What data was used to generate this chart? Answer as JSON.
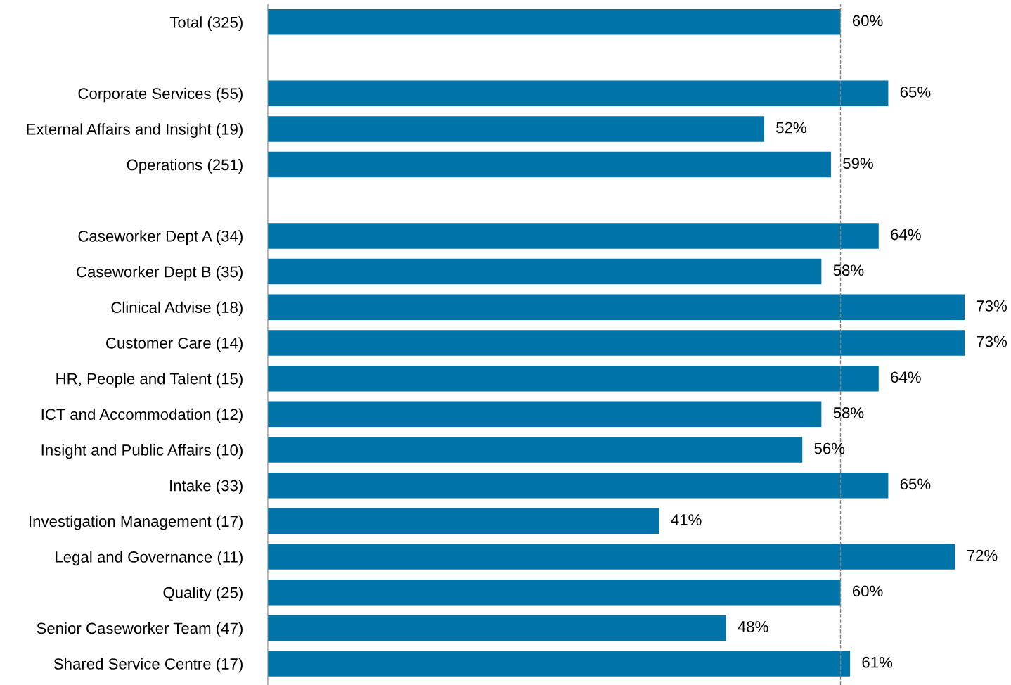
{
  "chart_data": {
    "type": "bar",
    "orientation": "horizontal",
    "categories": [
      "Total (325)",
      null,
      "Corporate Services (55)",
      "External Affairs and Insight (19)",
      "Operations (251)",
      null,
      "Caseworker Dept A (34)",
      "Caseworker Dept B (35)",
      "Clinical Advise (18)",
      "Customer Care (14)",
      "HR, People and Talent (15)",
      "ICT and Accommodation (12)",
      "Insight and Public Affairs (10)",
      "Intake (33)",
      "Investigation Management (17)",
      "Legal and Governance (11)",
      "Quality (25)",
      "Senior Caseworker Team (47)",
      "Shared Service Centre (17)"
    ],
    "values": [
      60,
      null,
      65,
      52,
      59,
      null,
      64,
      58,
      73,
      73,
      64,
      58,
      56,
      65,
      41,
      72,
      60,
      48,
      61
    ],
    "value_labels": [
      "60%",
      null,
      "65%",
      "52%",
      "59%",
      null,
      "64%",
      "58%",
      "73%",
      "73%",
      "64%",
      "58%",
      "56%",
      "65%",
      "41%",
      "72%",
      "60%",
      "48%",
      "61%"
    ],
    "color": "#0073a8",
    "tick_labels": "y",
    "grid": false,
    "legend": false,
    "ref_lines": [
      {
        "axis": "x",
        "value": 60,
        "color": "#808080",
        "line_style": "dashed"
      }
    ]
  }
}
